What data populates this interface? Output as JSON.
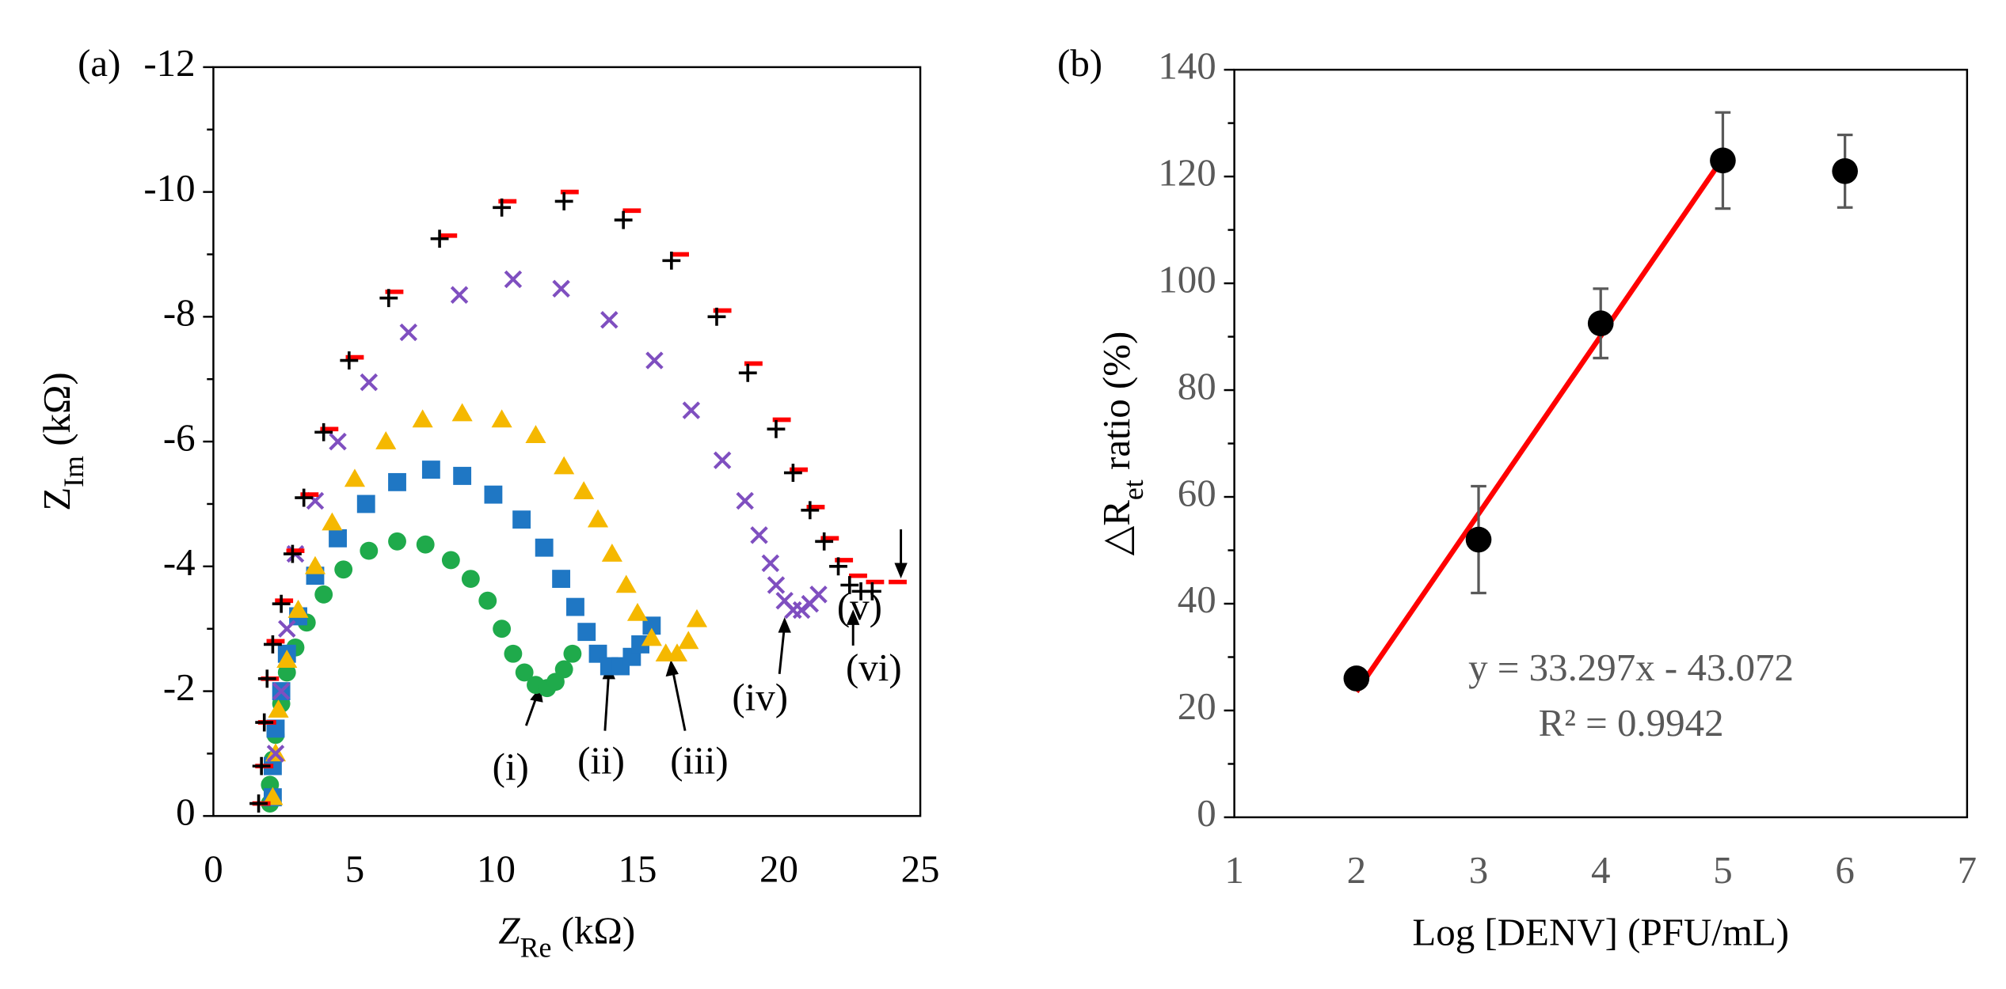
{
  "chart_data": [
    {
      "type": "scatter",
      "panel": "(a)",
      "ylabel": {
        "main": "Z",
        "sub": "Im",
        "unit": " (kΩ)"
      },
      "xlabel": {
        "main": "Z",
        "sub": "Re",
        "unit": " (kΩ)"
      },
      "xlim": [
        0,
        25
      ],
      "xticks": [
        0,
        5,
        10,
        15,
        20,
        25
      ],
      "ylim": [
        0,
        -12
      ],
      "yticks": [
        0,
        -2,
        -4,
        -6,
        -8,
        -10,
        -12
      ],
      "series": [
        {
          "name": "(i)",
          "marker": "circle",
          "color": "#1faa4b",
          "x": [
            2.0,
            2.0,
            2.1,
            2.2,
            2.4,
            2.6,
            2.9,
            3.3,
            3.9,
            4.6,
            5.5,
            6.5,
            7.5,
            8.4,
            9.1,
            9.7,
            10.2,
            10.6,
            11.0,
            11.4,
            11.8,
            12.1,
            12.4,
            12.7
          ],
          "values": [
            -0.2,
            -0.5,
            -0.9,
            -1.3,
            -1.8,
            -2.3,
            -2.7,
            -3.1,
            -3.55,
            -3.95,
            -4.25,
            -4.4,
            -4.35,
            -4.1,
            -3.8,
            -3.45,
            -3.0,
            -2.6,
            -2.3,
            -2.1,
            -2.05,
            -2.15,
            -2.35,
            -2.6
          ]
        },
        {
          "name": "(ii)",
          "marker": "square",
          "color": "#1f77c4",
          "x": [
            2.1,
            2.1,
            2.2,
            2.4,
            2.6,
            3.0,
            3.6,
            4.4,
            5.4,
            6.5,
            7.7,
            8.8,
            9.9,
            10.9,
            11.7,
            12.3,
            12.8,
            13.2,
            13.6,
            14.0,
            14.4,
            14.8,
            15.1,
            15.5
          ],
          "values": [
            -0.3,
            -0.8,
            -1.4,
            -2.0,
            -2.6,
            -3.2,
            -3.85,
            -4.45,
            -5.0,
            -5.35,
            -5.55,
            -5.45,
            -5.15,
            -4.75,
            -4.3,
            -3.8,
            -3.35,
            -2.95,
            -2.6,
            -2.4,
            -2.4,
            -2.55,
            -2.75,
            -3.05
          ]
        },
        {
          "name": "(iii)",
          "marker": "triangle",
          "color": "#f5b800",
          "x": [
            2.1,
            2.2,
            2.3,
            2.6,
            3.0,
            3.6,
            4.2,
            5.0,
            6.1,
            7.4,
            8.8,
            10.2,
            11.4,
            12.4,
            13.1,
            13.6,
            14.1,
            14.6,
            15.0,
            15.5,
            16.0,
            16.4,
            16.8,
            17.1
          ],
          "values": [
            -0.3,
            -1.0,
            -1.7,
            -2.5,
            -3.3,
            -4.0,
            -4.7,
            -5.4,
            -6.0,
            -6.35,
            -6.45,
            -6.35,
            -6.1,
            -5.6,
            -5.2,
            -4.75,
            -4.2,
            -3.7,
            -3.25,
            -2.85,
            -2.6,
            -2.6,
            -2.8,
            -3.15
          ]
        },
        {
          "name": "(iv)",
          "marker": "x",
          "color": "#7f4fc0",
          "x": [
            2.2,
            2.4,
            2.6,
            2.9,
            3.6,
            4.4,
            5.5,
            6.9,
            8.7,
            10.6,
            12.3,
            14.0,
            15.6,
            16.9,
            18.0,
            18.8,
            19.3,
            19.7,
            19.9,
            20.2,
            20.5,
            20.8,
            21.1,
            21.4
          ],
          "values": [
            -1.0,
            -2.0,
            -3.0,
            -4.2,
            -5.05,
            -6.0,
            -6.95,
            -7.75,
            -8.35,
            -8.6,
            -8.45,
            -7.95,
            -7.3,
            -6.5,
            -5.7,
            -5.05,
            -4.5,
            -4.05,
            -3.7,
            -3.45,
            -3.3,
            -3.3,
            -3.4,
            -3.55
          ]
        },
        {
          "name": "(v)",
          "marker": "dash",
          "color": "#ff0000",
          "x": [
            1.7,
            1.8,
            1.9,
            2.0,
            2.2,
            2.5,
            2.9,
            3.4,
            4.1,
            5.0,
            6.4,
            8.3,
            10.4,
            12.6,
            14.8,
            16.5,
            18.0,
            19.1,
            20.1,
            20.7,
            21.3,
            21.8,
            22.3,
            22.8,
            23.4,
            24.2
          ],
          "values": [
            -0.2,
            -0.8,
            -1.5,
            -2.2,
            -2.8,
            -3.45,
            -4.25,
            -5.15,
            -6.2,
            -7.35,
            -8.4,
            -9.3,
            -9.85,
            -10.0,
            -9.7,
            -9.0,
            -8.1,
            -7.25,
            -6.35,
            -5.55,
            -4.95,
            -4.45,
            -4.1,
            -3.85,
            -3.75,
            -3.75
          ]
        },
        {
          "name": "(vi)",
          "marker": "plus",
          "color": "#000000",
          "x": [
            1.6,
            1.7,
            1.8,
            1.9,
            2.1,
            2.4,
            2.8,
            3.2,
            3.9,
            4.8,
            6.2,
            8.0,
            10.2,
            12.4,
            14.5,
            16.2,
            17.8,
            18.9,
            19.9,
            20.5,
            21.1,
            21.6,
            22.1,
            22.5,
            22.9,
            23.3
          ],
          "values": [
            -0.2,
            -0.8,
            -1.5,
            -2.2,
            -2.75,
            -3.4,
            -4.2,
            -5.1,
            -6.15,
            -7.3,
            -8.3,
            -9.25,
            -9.75,
            -9.85,
            -9.55,
            -8.9,
            -8.0,
            -7.1,
            -6.2,
            -5.5,
            -4.9,
            -4.4,
            -4.0,
            -3.7,
            -3.6,
            -3.6
          ]
        }
      ]
    },
    {
      "type": "scatter",
      "panel": "(b)",
      "ylabel": {
        "main": "△R",
        "sub": "et",
        "unit": " ratio (%)"
      },
      "xlabel": "Log [DENV] (PFU/mL)",
      "xlim": [
        1,
        7
      ],
      "xticks": [
        1,
        2,
        3,
        4,
        5,
        6,
        7
      ],
      "ylim": [
        0,
        140
      ],
      "yticks": [
        0,
        20,
        40,
        60,
        80,
        100,
        120,
        140
      ],
      "series": [
        {
          "name": "data",
          "color": "#000000",
          "x": [
            2,
            3,
            4,
            5,
            6
          ],
          "values": [
            26,
            52,
            92.5,
            123,
            121
          ],
          "errors": [
            null,
            10,
            6.5,
            9,
            6.8
          ]
        },
        {
          "name": "fit",
          "color": "#ff0000",
          "x": [
            2,
            5
          ],
          "values": [
            23.522,
            123.413
          ]
        }
      ],
      "equation": "y = 33.297x - 43.072",
      "r_squared": "R² = 0.9942"
    }
  ]
}
